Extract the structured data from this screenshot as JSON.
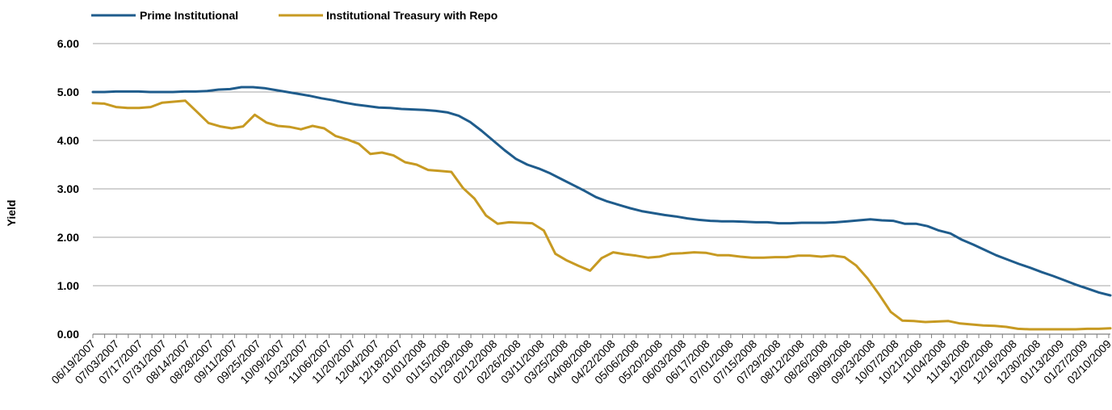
{
  "chart_data": {
    "type": "line",
    "title": "",
    "xlabel": "",
    "ylabel": "Yield",
    "ylim": [
      0,
      6
    ],
    "y_ticks": [
      "0.00",
      "1.00",
      "2.00",
      "3.00",
      "4.00",
      "5.00",
      "6.00"
    ],
    "grid": "horizontal",
    "legend_position": "top-left",
    "x_tick_labels": [
      "06/19/2007",
      "07/03/2007",
      "07/17/2007",
      "07/31/2007",
      "08/14/2007",
      "08/28/2007",
      "09/11/2007",
      "09/25/2007",
      "10/09/2007",
      "10/23/2007",
      "11/06/2007",
      "11/20/2007",
      "12/04/2007",
      "12/18/2007",
      "01/01/2008",
      "01/15/2008",
      "01/29/2008",
      "02/12/2008",
      "02/26/2008",
      "03/11/2008",
      "03/25/2008",
      "04/08/2008",
      "04/22/2008",
      "05/06/2008",
      "05/20/2008",
      "06/03/2008",
      "06/17/2008",
      "07/01/2008",
      "07/15/2008",
      "07/29/2008",
      "08/12/2008",
      "08/26/2008",
      "09/09/2008",
      "09/23/2008",
      "10/07/2008",
      "10/21/2008",
      "11/04/2008",
      "11/18/2008",
      "12/02/2008",
      "12/16/2008",
      "12/30/2008",
      "01/13/2009",
      "01/27/2009",
      "02/10/2009"
    ],
    "series": [
      {
        "name": "Prime Institutional",
        "color": "#1f5c8c",
        "values": [
          5.0,
          5.0,
          5.01,
          5.01,
          5.01,
          5.0,
          5.0,
          5.0,
          5.01,
          5.01,
          5.02,
          5.05,
          5.06,
          5.1,
          5.1,
          5.08,
          5.04,
          5.0,
          4.96,
          4.92,
          4.87,
          4.83,
          4.78,
          4.74,
          4.71,
          4.68,
          4.67,
          4.65,
          4.64,
          4.63,
          4.61,
          4.58,
          4.51,
          4.38,
          4.2,
          4.0,
          3.8,
          3.62,
          3.5,
          3.42,
          3.32,
          3.2,
          3.08,
          2.96,
          2.83,
          2.74,
          2.67,
          2.6,
          2.54,
          2.5,
          2.46,
          2.43,
          2.39,
          2.36,
          2.34,
          2.33,
          2.33,
          2.32,
          2.31,
          2.31,
          2.29,
          2.29,
          2.3,
          2.3,
          2.3,
          2.31,
          2.33,
          2.35,
          2.37,
          2.35,
          2.34,
          2.28,
          2.28,
          2.23,
          2.14,
          2.08,
          1.95,
          1.85,
          1.74,
          1.63,
          1.54,
          1.45,
          1.37,
          1.28,
          1.2,
          1.11,
          1.02,
          0.94,
          0.86,
          0.8
        ]
      },
      {
        "name": "Institutional Treasury with Repo",
        "color": "#c79a22",
        "values": [
          4.77,
          4.76,
          4.69,
          4.67,
          4.67,
          4.69,
          4.78,
          4.8,
          4.82,
          4.59,
          4.36,
          4.29,
          4.25,
          4.29,
          4.53,
          4.37,
          4.3,
          4.28,
          4.23,
          4.3,
          4.25,
          4.09,
          4.02,
          3.93,
          3.72,
          3.75,
          3.69,
          3.55,
          3.5,
          3.39,
          3.37,
          3.35,
          3.02,
          2.8,
          2.45,
          2.28,
          2.31,
          2.3,
          2.29,
          2.14,
          1.66,
          1.52,
          1.41,
          1.31,
          1.57,
          1.69,
          1.65,
          1.62,
          1.58,
          1.6,
          1.66,
          1.67,
          1.69,
          1.68,
          1.63,
          1.63,
          1.6,
          1.58,
          1.58,
          1.59,
          1.59,
          1.62,
          1.62,
          1.6,
          1.62,
          1.59,
          1.42,
          1.15,
          0.82,
          0.46,
          0.28,
          0.27,
          0.25,
          0.26,
          0.27,
          0.22,
          0.2,
          0.18,
          0.17,
          0.15,
          0.11,
          0.1,
          0.1,
          0.1,
          0.1,
          0.1,
          0.11,
          0.11,
          0.12
        ]
      }
    ]
  }
}
